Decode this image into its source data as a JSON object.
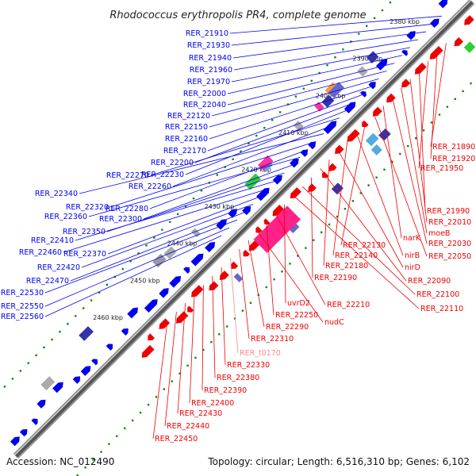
{
  "title": "Rhodococcus erythropolis PR4, complete genome",
  "footer": {
    "accession": "Accession: NC_012490",
    "summary": "Topology: circular; Length: 6,516,310 bp; Genes: 6,102"
  },
  "colors": {
    "forward": "#0000ee",
    "reverse": "#ee0000",
    "rna": "#ff8888",
    "backbone": "#555555",
    "ticks": "#118811"
  },
  "kbp_marks": [
    "2380 kbp",
    "2390 kbp",
    "2400 kbp",
    "2410 kbp",
    "2420 kbp",
    "2430 kbp",
    "2440 kbp",
    "2450 kbp",
    "2460 kbp"
  ],
  "left_labels": [
    "RER_21910",
    "RER_21930",
    "RER_21940",
    "RER_21960",
    "RER_21970",
    "RER_22000",
    "RER_22040",
    "RER_22120",
    "RER_22150",
    "RER_22160",
    "RER_22170",
    "RER_22200",
    "RER_22230",
    "RER_22270",
    "RER_22260",
    "RER_22340",
    "RER_22320",
    "RER_22280",
    "RER_22360",
    "RER_22300",
    "RER_22350",
    "RER_22410",
    "RER_22460",
    "RER_22370",
    "RER_22420",
    "RER_22470",
    "RER_22530",
    "RER_22550",
    "RER_22560"
  ],
  "right_labels": [
    "RER_21890",
    "RER_21920",
    "RER_21950",
    "RER_21990",
    "RER_22010",
    "moeB",
    "RER_22030",
    "narK",
    "RER_22050",
    "RER_22130",
    "nirB",
    "RER_22140",
    "nirD",
    "RER_22180",
    "RER_22090",
    "RER_22190",
    "RER_22100",
    "RER_22110",
    "uvrD2",
    "RER_22210",
    "RER_22250",
    "nudC",
    "RER_22290",
    "RER_22310",
    "RER_t0170",
    "RER_22330",
    "RER_22380",
    "RER_22390",
    "RER_22400",
    "RER_22430",
    "RER_22440",
    "RER_22450"
  ]
}
